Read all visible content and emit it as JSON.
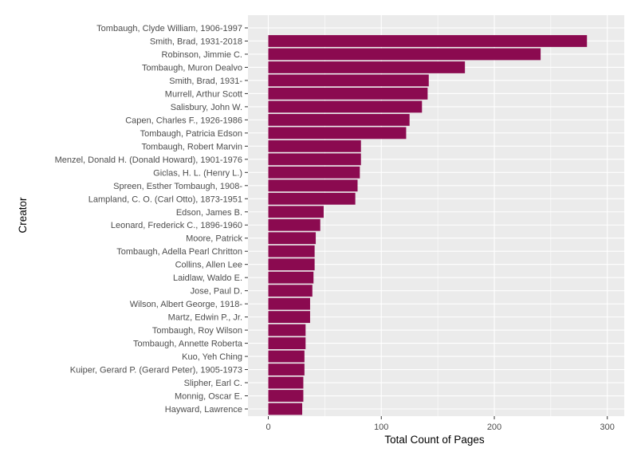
{
  "chart_data": {
    "type": "bar",
    "orientation": "horizontal",
    "xlabel": "Total Count of Pages",
    "ylabel": "Creator",
    "xlim": [
      -18,
      315
    ],
    "x_ticks": [
      0,
      100,
      200,
      300
    ],
    "grid": true,
    "bar_color": "#8B0A50",
    "panel_color": "#EBEBEB",
    "gridline_color": "#FFFFFF",
    "categories": [
      "Tombaugh, Clyde William, 1906-1997",
      "Smith, Brad, 1931-2018",
      "Robinson, Jimmie C.",
      "Tombaugh, Muron Dealvo",
      "Smith, Brad, 1931-",
      "Murrell, Arthur Scott",
      "Salisbury, John W.",
      "Capen, Charles F., 1926-1986",
      "Tombaugh, Patricia Edson",
      "Tombaugh, Robert Marvin",
      "Menzel, Donald H. (Donald Howard), 1901-1976",
      "Giclas, H. L. (Henry L.)",
      "Spreen, Esther Tombaugh, 1908-",
      "Lampland, C. O. (Carl Otto), 1873-1951",
      "Edson, James B.",
      "Leonard, Frederick C., 1896-1960",
      "Moore, Patrick",
      "Tombaugh, Adella Pearl Chritton",
      "Collins, Allen Lee",
      "Laidlaw, Waldo E.",
      "Jose, Paul D.",
      "Wilson, Albert George, 1918-",
      "Martz, Edwin P., Jr.",
      "Tombaugh, Roy Wilson",
      "Tombaugh, Annette Roberta",
      "Kuo, Yeh Ching",
      "Kuiper, Gerard P. (Gerard Peter), 1905-1973",
      "Slipher, Earl C.",
      "Monnig, Oscar E.",
      "Hayward, Lawrence"
    ],
    "values": [
      0,
      282,
      241,
      174,
      142,
      141,
      136,
      125,
      122,
      82,
      82,
      81,
      79,
      77,
      49,
      46,
      42,
      41,
      41,
      40,
      39,
      37,
      37,
      33,
      33,
      32,
      32,
      31,
      31,
      30
    ]
  }
}
